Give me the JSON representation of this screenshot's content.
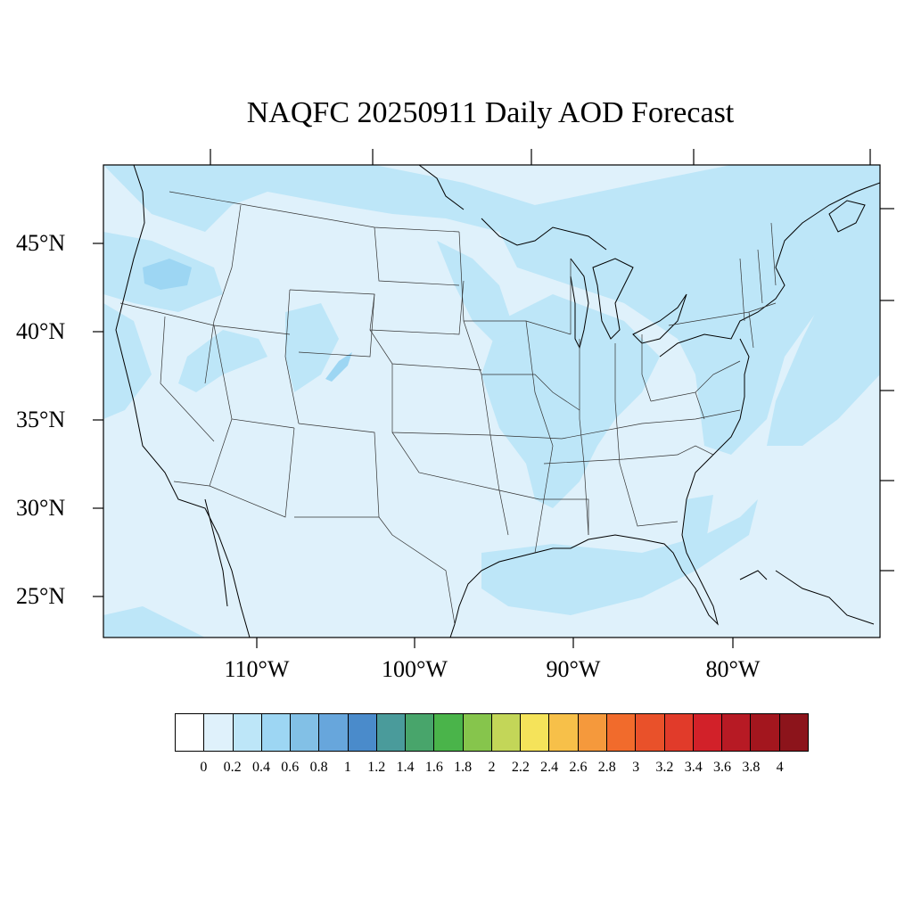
{
  "title": "NAQFC 20250911 Daily AOD Forecast",
  "map": {
    "background_color": "#dff1fb",
    "lat_labels": [
      "45°N",
      "40°N",
      "35°N",
      "30°N",
      "25°N"
    ],
    "lon_labels": [
      "110°W",
      "100°W",
      "90°W",
      "80°W"
    ],
    "layers": [
      "state-boundaries",
      "coastlines",
      "aod-contour-fill"
    ]
  },
  "colorbar": {
    "labels": [
      "0",
      "0.2",
      "0.4",
      "0.6",
      "0.8",
      "1",
      "1.2",
      "1.4",
      "1.6",
      "1.8",
      "2",
      "2.2",
      "2.4",
      "2.6",
      "2.8",
      "3",
      "3.2",
      "3.4",
      "3.6",
      "3.8",
      "4"
    ],
    "colors": [
      "#ffffff",
      "#dff1fb",
      "#bde6f8",
      "#9dd6f3",
      "#82c0e6",
      "#67a6dc",
      "#4a8bcb",
      "#4a9b9b",
      "#48a56b",
      "#4ab44a",
      "#86c54c",
      "#c3d658",
      "#f5e35a",
      "#f7c049",
      "#f5993c",
      "#f16b2c",
      "#e9512a",
      "#e13b2a",
      "#d22129",
      "#b71a24",
      "#a3161e",
      "#8c141b"
    ]
  }
}
